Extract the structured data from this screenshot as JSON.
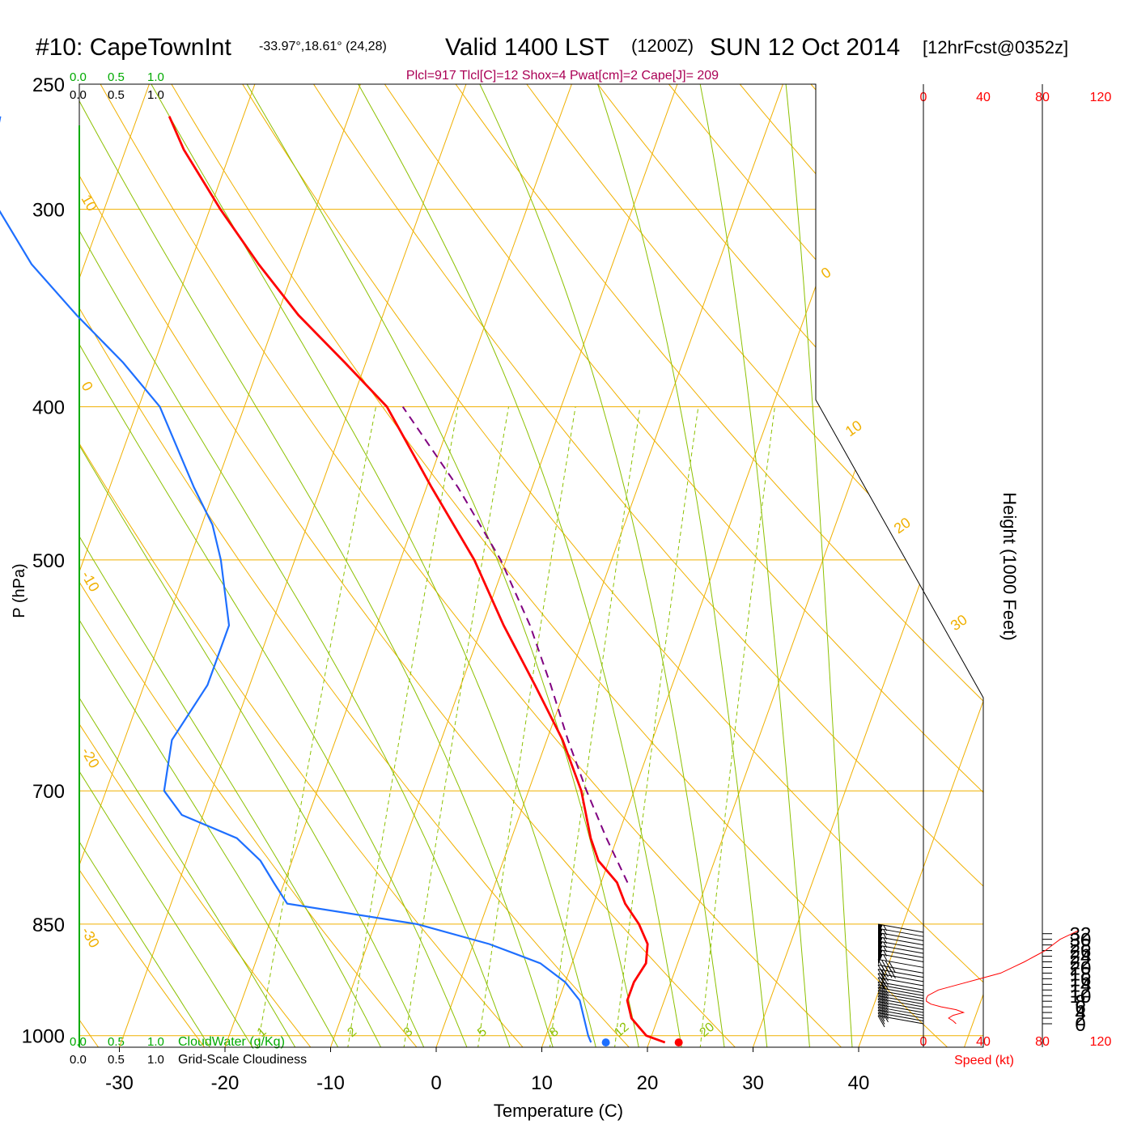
{
  "header": {
    "station": "#10: CapeTownInt",
    "coords": "-33.97°,18.61° (24,28)",
    "valid": "Valid 1400 LST",
    "zulu": "(1200Z)",
    "date": "SUN 12 Oct 2014",
    "forecast": "[12hrFcst@0352z]"
  },
  "indices_text": "Plcl=917 Tlcl[C]=12 Shox=4 Pwat[cm]=2 Cape[J]= 209",
  "colors": {
    "temperature": "#ff0000",
    "dewpoint": "#1e6fff",
    "parcel": "#800080",
    "isobars_isotherms": "#f0b000",
    "dry_adiabats": "#f0b000",
    "moist_adiabats": "#8cc000",
    "mixing_ratio": "#8cc000",
    "cloudwater": "#00aa00",
    "indices": "#aa0055",
    "speed": "#ff0000"
  },
  "cloud_scales": {
    "cloudwater_ticks": [
      "0.0",
      "0.5",
      "1.0"
    ],
    "cloudiness_ticks": [
      "0.0",
      "0.5",
      "1.0"
    ],
    "cloudwater_label": "CloudWater (g/Kg)",
    "cloudiness_label": "Grid-Scale Cloudiness"
  },
  "speed_axis": {
    "ticks": [
      "0",
      "40",
      "80",
      "120"
    ],
    "label": "Speed (kt)"
  },
  "height_axis": {
    "label": "Height (1000 Feet)",
    "ticks": [
      0,
      2,
      4,
      6,
      8,
      10,
      12,
      14,
      16,
      18,
      20,
      22,
      24,
      26,
      28,
      30,
      32
    ]
  },
  "chart_data": {
    "type": "skew-t",
    "xlabel": "Temperature (C)",
    "ylabel": "P (hPa)",
    "x_ticks": [
      -30,
      -20,
      -10,
      0,
      10,
      20,
      30,
      40
    ],
    "p_ticks": [
      250,
      300,
      400,
      500,
      700,
      850,
      1000
    ],
    "p_range": [
      250,
      1017
    ],
    "isotherm_labels": [
      "10",
      "0",
      "-10",
      "-20",
      "-30",
      "0",
      "10",
      "20",
      "30"
    ],
    "mixing_ratio_labels": [
      "1",
      "2",
      "3",
      "5",
      "8",
      "12",
      "20"
    ],
    "surface_temperature": 22.8,
    "surface_dewpoint": 15.9,
    "temperature": [
      {
        "p": 1010,
        "t": 21.5
      },
      {
        "p": 1000,
        "t": 19.5
      },
      {
        "p": 975,
        "t": 17.5
      },
      {
        "p": 950,
        "t": 16.5
      },
      {
        "p": 925,
        "t": 16.5
      },
      {
        "p": 900,
        "t": 17.0
      },
      {
        "p": 875,
        "t": 16.5
      },
      {
        "p": 850,
        "t": 15.0
      },
      {
        "p": 825,
        "t": 13.0
      },
      {
        "p": 800,
        "t": 11.5
      },
      {
        "p": 775,
        "t": 9.0
      },
      {
        "p": 750,
        "t": 7.5
      },
      {
        "p": 700,
        "t": 5.0
      },
      {
        "p": 650,
        "t": 1.5
      },
      {
        "p": 600,
        "t": -3.0
      },
      {
        "p": 550,
        "t": -8.0
      },
      {
        "p": 500,
        "t": -13.0
      },
      {
        "p": 450,
        "t": -19.5
      },
      {
        "p": 400,
        "t": -26.5
      },
      {
        "p": 375,
        "t": -32.0
      },
      {
        "p": 350,
        "t": -38.0
      },
      {
        "p": 325,
        "t": -43.5
      },
      {
        "p": 300,
        "t": -49.0
      },
      {
        "p": 275,
        "t": -54.5
      },
      {
        "p": 262,
        "t": -57.0
      }
    ],
    "dewpoint": [
      {
        "p": 1010,
        "t": 14.5
      },
      {
        "p": 1000,
        "t": 14.0
      },
      {
        "p": 950,
        "t": 12.0
      },
      {
        "p": 925,
        "t": 10.0
      },
      {
        "p": 900,
        "t": 7.0
      },
      {
        "p": 875,
        "t": 1.5
      },
      {
        "p": 850,
        "t": -6.0
      },
      {
        "p": 825,
        "t": -19.0
      },
      {
        "p": 800,
        "t": -21.0
      },
      {
        "p": 775,
        "t": -23.0
      },
      {
        "p": 750,
        "t": -26.0
      },
      {
        "p": 725,
        "t": -32.0
      },
      {
        "p": 700,
        "t": -34.5
      },
      {
        "p": 650,
        "t": -35.5
      },
      {
        "p": 600,
        "t": -34.0
      },
      {
        "p": 550,
        "t": -34.0
      },
      {
        "p": 500,
        "t": -37.0
      },
      {
        "p": 475,
        "t": -39.0
      },
      {
        "p": 450,
        "t": -42.0
      },
      {
        "p": 400,
        "t": -48.0
      },
      {
        "p": 375,
        "t": -53.0
      },
      {
        "p": 350,
        "t": -59.0
      },
      {
        "p": 325,
        "t": -65.0
      },
      {
        "p": 300,
        "t": -70.0
      },
      {
        "p": 287,
        "t": -72.0
      },
      {
        "p": 262,
        "t": -73.0
      }
    ],
    "parcel": [
      {
        "p": 800,
        "t": 12.5
      },
      {
        "p": 750,
        "t": 9.0
      },
      {
        "p": 700,
        "t": 5.5
      },
      {
        "p": 650,
        "t": 2.0
      },
      {
        "p": 600,
        "t": -1.5
      },
      {
        "p": 550,
        "t": -5.5
      },
      {
        "p": 500,
        "t": -10.5
      },
      {
        "p": 450,
        "t": -17.0
      },
      {
        "p": 400,
        "t": -25.0
      }
    ],
    "wind_speed_kt": [
      {
        "ft": 0,
        "v": 22
      },
      {
        "ft": 1000,
        "v": 20
      },
      {
        "ft": 2000,
        "v": 17
      },
      {
        "ft": 3000,
        "v": 20
      },
      {
        "ft": 4000,
        "v": 27
      },
      {
        "ft": 5000,
        "v": 22
      },
      {
        "ft": 6000,
        "v": 12
      },
      {
        "ft": 7000,
        "v": 5
      },
      {
        "ft": 8000,
        "v": 2
      },
      {
        "ft": 9000,
        "v": 2
      },
      {
        "ft": 10000,
        "v": 3
      },
      {
        "ft": 12000,
        "v": 10
      },
      {
        "ft": 14000,
        "v": 24
      },
      {
        "ft": 16000,
        "v": 38
      },
      {
        "ft": 18000,
        "v": 52
      },
      {
        "ft": 20000,
        "v": 60
      },
      {
        "ft": 22000,
        "v": 68
      },
      {
        "ft": 24000,
        "v": 75
      },
      {
        "ft": 26000,
        "v": 82
      },
      {
        "ft": 28000,
        "v": 87
      },
      {
        "ft": 30000,
        "v": 92
      },
      {
        "ft": 32000,
        "v": 100
      },
      {
        "ft": 33000,
        "v": 104
      }
    ],
    "wind_barbs": [
      {
        "ft": 32500,
        "kt": 55
      },
      {
        "ft": 31000,
        "kt": 55
      },
      {
        "ft": 29500,
        "kt": 55
      },
      {
        "ft": 28000,
        "kt": 55
      },
      {
        "ft": 26500,
        "kt": 55
      },
      {
        "ft": 25000,
        "kt": 55
      },
      {
        "ft": 23500,
        "kt": 55
      },
      {
        "ft": 22000,
        "kt": 55
      },
      {
        "ft": 20000,
        "kt": 40
      },
      {
        "ft": 18000,
        "kt": 40
      },
      {
        "ft": 16500,
        "kt": 20
      },
      {
        "ft": 15000,
        "kt": 20
      },
      {
        "ft": 13500,
        "kt": 20
      },
      {
        "ft": 12000,
        "kt": 20
      },
      {
        "ft": 11000,
        "kt": 20
      },
      {
        "ft": 10000,
        "kt": 20
      },
      {
        "ft": 9000,
        "kt": 20
      },
      {
        "ft": 8000,
        "kt": 20
      },
      {
        "ft": 7000,
        "kt": 20
      },
      {
        "ft": 6000,
        "kt": 20
      },
      {
        "ft": 5000,
        "kt": 20
      },
      {
        "ft": 4000,
        "kt": 20
      },
      {
        "ft": 3000,
        "kt": 20
      },
      {
        "ft": 2000,
        "kt": 20
      },
      {
        "ft": 1000,
        "kt": 10
      },
      {
        "ft": 0,
        "kt": 10
      }
    ]
  }
}
